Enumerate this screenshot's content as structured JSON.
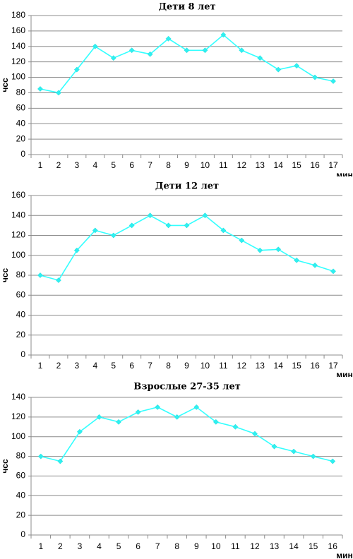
{
  "chart_data": [
    {
      "type": "line",
      "title": "Дети 8 лет",
      "xlabel": "мин",
      "ylabel": "чсс",
      "categories": [
        "1",
        "2",
        "3",
        "4",
        "5",
        "6",
        "7",
        "8",
        "9",
        "10",
        "11",
        "12",
        "13",
        "14",
        "15",
        "16",
        "17"
      ],
      "ylim": [
        0,
        180
      ],
      "yticks": [
        0,
        20,
        40,
        60,
        80,
        100,
        120,
        140,
        160,
        180
      ],
      "grid": true,
      "series_color": "#33ffff",
      "series": [
        {
          "values": [
            85,
            80,
            110,
            140,
            125,
            135,
            130,
            150,
            135,
            135,
            155,
            135,
            125,
            110,
            115,
            100,
            95
          ]
        }
      ]
    },
    {
      "type": "line",
      "title": "Дети 12 лет",
      "xlabel": "мин",
      "ylabel": "чсс",
      "categories": [
        "1",
        "2",
        "3",
        "4",
        "5",
        "6",
        "7",
        "8",
        "9",
        "10",
        "11",
        "12",
        "13",
        "14",
        "15",
        "16",
        "17"
      ],
      "ylim": [
        0,
        160
      ],
      "yticks": [
        0,
        20,
        40,
        60,
        80,
        100,
        120,
        140,
        160
      ],
      "grid": true,
      "series_color": "#33ffff",
      "series": [
        {
          "values": [
            80,
            75,
            105,
            125,
            120,
            130,
            140,
            130,
            130,
            140,
            125,
            115,
            105,
            106,
            95,
            90,
            84
          ]
        }
      ]
    },
    {
      "type": "line",
      "title": "Взрослые 27-35 лет",
      "xlabel": "мин",
      "ylabel": "чсс",
      "categories": [
        "1",
        "2",
        "3",
        "4",
        "5",
        "6",
        "7",
        "8",
        "9",
        "10",
        "11",
        "12",
        "13",
        "14",
        "15",
        "16"
      ],
      "ylim": [
        0,
        140
      ],
      "yticks": [
        0,
        20,
        40,
        60,
        80,
        100,
        120,
        140
      ],
      "grid": true,
      "series_color": "#33ffff",
      "series": [
        {
          "values": [
            80,
            75,
            105,
            120,
            115,
            125,
            130,
            120,
            130,
            115,
            110,
            103,
            90,
            85,
            80,
            75
          ]
        }
      ]
    }
  ]
}
